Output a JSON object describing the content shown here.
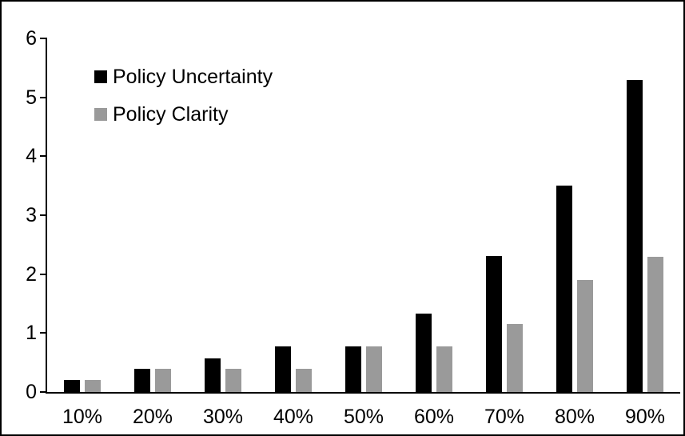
{
  "frame": {
    "background": "#ffffff",
    "border_color": "#000000"
  },
  "chart_data": {
    "type": "bar",
    "title": "",
    "xlabel": "",
    "ylabel": "",
    "categories": [
      "10%",
      "20%",
      "30%",
      "40%",
      "50%",
      "60%",
      "70%",
      "80%",
      "90%"
    ],
    "series": [
      {
        "name": "Policy Uncertainty",
        "color": "#000000",
        "values": [
          0.2,
          0.4,
          0.57,
          0.77,
          0.78,
          1.33,
          2.31,
          3.5,
          5.3
        ]
      },
      {
        "name": "Policy Clarity",
        "color": "#9a9a9a",
        "values": [
          0.2,
          0.4,
          0.4,
          0.4,
          0.77,
          0.77,
          1.15,
          1.9,
          2.3
        ]
      }
    ],
    "ylim": [
      0,
      6
    ],
    "yticks": [
      "0",
      "1",
      "2",
      "3",
      "4",
      "5",
      "6"
    ],
    "grid": false,
    "legend_position": "upper-left-inside"
  }
}
